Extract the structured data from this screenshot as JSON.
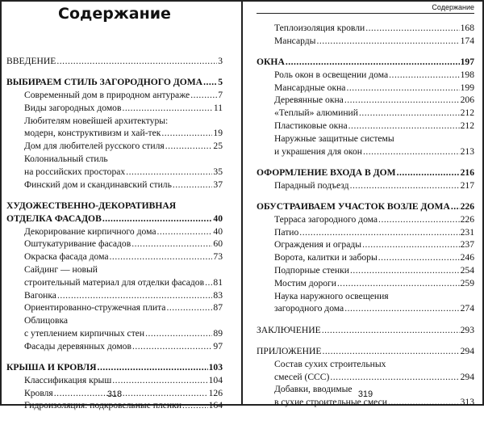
{
  "left_page": {
    "title": "Содержание",
    "page_number": "318",
    "sections": [
      {
        "entries": [
          {
            "text": "ВВЕДЕНИЕ",
            "page": "3",
            "level": "top",
            "bold": false
          }
        ]
      },
      {
        "entries": [
          {
            "text": "ВЫБИРАЕМ СТИЛЬ ЗАГОРОДНОГО ДОМА",
            "page": "5",
            "level": "top",
            "bold": true
          },
          {
            "text": "Современный дом в природном антураже",
            "page": "7",
            "level": "sub"
          },
          {
            "text": "Виды загородных домов",
            "page": "11",
            "level": "sub"
          },
          {
            "pre": "Любителям новейшей архитектуры:",
            "text": "модерн, конструктивизм и хай-тек",
            "page": "19",
            "level": "sub"
          },
          {
            "text": "Дом для любителей русского стиля",
            "page": "25",
            "level": "sub"
          },
          {
            "pre": "Колониальный стиль",
            "text": "на российских просторах",
            "page": "35",
            "level": "sub"
          },
          {
            "text": "Финский дом и скандинавский стиль",
            "page": "37",
            "level": "sub"
          }
        ]
      },
      {
        "entries": [
          {
            "pre": "ХУДОЖЕСТВЕННО-ДЕКОРАТИВНАЯ",
            "text": "ОТДЕЛКА ФАСАДОВ",
            "page": "40",
            "level": "top",
            "bold": true
          },
          {
            "text": "Декорирование кирпичного дома",
            "page": "40",
            "level": "sub"
          },
          {
            "text": "Оштукатуривание фасадов",
            "page": "60",
            "level": "sub"
          },
          {
            "text": "Окраска фасада дома",
            "page": "73",
            "level": "sub"
          },
          {
            "pre": "Сайдинг — новый",
            "text": "строительный материал для отделки фасадов",
            "page": "81",
            "level": "sub"
          },
          {
            "text": "Вагонка",
            "page": "83",
            "level": "sub"
          },
          {
            "text": "Ориентированно-стружечная плита",
            "page": "87",
            "level": "sub"
          },
          {
            "pre": "Облицовка",
            "text": "с утеплением кирпичных стен",
            "page": "89",
            "level": "sub"
          },
          {
            "text": "Фасады деревянных домов",
            "page": "97",
            "level": "sub"
          }
        ]
      },
      {
        "entries": [
          {
            "text": "КРЫША И КРОВЛЯ",
            "page": "103",
            "level": "top",
            "bold": true
          },
          {
            "text": "Классификация крыш",
            "page": "104",
            "level": "sub"
          },
          {
            "text": "Кровля",
            "page": "126",
            "level": "sub"
          },
          {
            "text": "Гидроизоляция: подкровельные пленки",
            "page": "164",
            "level": "sub"
          }
        ]
      }
    ]
  },
  "right_page": {
    "running_head": "Содержание",
    "page_number": "319",
    "sections": [
      {
        "entries": [
          {
            "text": "Теплоизоляция кровли",
            "page": "168",
            "level": "sub"
          },
          {
            "text": "Мансарды",
            "page": "174",
            "level": "sub"
          }
        ]
      },
      {
        "entries": [
          {
            "text": "ОКНА",
            "page": "197",
            "level": "top",
            "bold": true
          },
          {
            "text": "Роль окон в освещении дома",
            "page": "198",
            "level": "sub"
          },
          {
            "text": "Мансардные окна",
            "page": "199",
            "level": "sub"
          },
          {
            "text": "Деревянные окна",
            "page": "206",
            "level": "sub"
          },
          {
            "text": "«Теплый» алюминий",
            "page": "212",
            "level": "sub"
          },
          {
            "text": "Пластиковые окна",
            "page": "212",
            "level": "sub"
          },
          {
            "pre": "Наружные защитные системы",
            "text": "и украшения для окон",
            "page": "213",
            "level": "sub"
          }
        ]
      },
      {
        "entries": [
          {
            "text": "ОФОРМЛЕНИЕ ВХОДА В ДОМ",
            "page": "216",
            "level": "top",
            "bold": true
          },
          {
            "text": "Парадный подъезд",
            "page": "217",
            "level": "sub"
          }
        ]
      },
      {
        "entries": [
          {
            "text": "ОБУСТРАИВАЕМ УЧАСТОК ВОЗЛЕ ДОМА",
            "page": "226",
            "level": "top",
            "bold": true
          },
          {
            "text": "Терраса загородного дома",
            "page": "226",
            "level": "sub"
          },
          {
            "text": "Патио",
            "page": "231",
            "level": "sub"
          },
          {
            "text": "Ограждения и ограды",
            "page": "237",
            "level": "sub"
          },
          {
            "text": "Ворота, калитки и заборы",
            "page": "246",
            "level": "sub"
          },
          {
            "text": "Подпорные стенки",
            "page": "254",
            "level": "sub"
          },
          {
            "text": "Мостим дороги",
            "page": "259",
            "level": "sub"
          },
          {
            "pre": "Наука наружного освещения",
            "text": "загородного дома",
            "page": "274",
            "level": "sub"
          }
        ]
      },
      {
        "entries": [
          {
            "text": "ЗАКЛЮЧЕНИЕ",
            "page": "293",
            "level": "top",
            "bold": false
          }
        ]
      },
      {
        "entries": [
          {
            "text": "ПРИЛОЖЕНИЕ",
            "page": "294",
            "level": "top",
            "bold": false
          },
          {
            "pre": "Состав сухих строительных",
            "text": "смесей (ССС)",
            "page": "294",
            "level": "sub"
          },
          {
            "pre": "Добавки, вводимые",
            "text": "в сухие строительные смеси",
            "page": "313",
            "level": "sub"
          }
        ]
      }
    ]
  }
}
